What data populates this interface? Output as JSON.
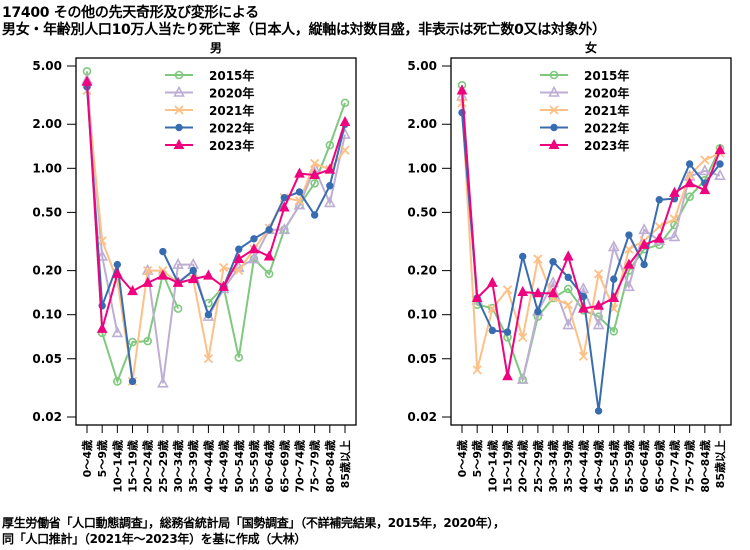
{
  "title_line1": "17400 その他の先天奇形及び変形による",
  "title_line2": "男女・年齢別人口10万人当たり死亡率（日本人，縦軸は対数目盛，非表示は死亡数0又は対象外）",
  "source_line1": "厚生労働省「人口動態調査」，総務省統計局「国勢調査」（不詳補完結果，2015年，2020年），",
  "source_line2": "同「人口推計」（2021年～2023年）を基に作成（大林）",
  "chart_data": [
    {
      "type": "line",
      "title": "男",
      "yscale": "log",
      "ylim": [
        0.02,
        5.0
      ],
      "yticks": [
        5.0,
        2.0,
        1.0,
        0.5,
        0.2,
        0.1,
        0.05,
        0.02
      ],
      "ytick_labels": [
        "5.00",
        "2.00",
        "1.00",
        "0.50",
        "0.20",
        "0.10",
        "0.05",
        "0.02"
      ],
      "categories": [
        "0～4歳",
        "5～9歳",
        "10～14歳",
        "15～19歳",
        "20～24歳",
        "25～29歳",
        "30～34歳",
        "35～39歳",
        "40～44歳",
        "45～49歳",
        "50～54歳",
        "55～59歳",
        "60～64歳",
        "65～69歳",
        "70～74歳",
        "75～79歳",
        "80～84歳",
        "85歳以上"
      ],
      "legend_position": "top-center",
      "series": [
        {
          "name": "2015年",
          "color": "#7fc97f",
          "marker": "circle-open",
          "values": [
            4.6,
            0.075,
            0.035,
            0.065,
            0.066,
            0.19,
            0.11,
            null,
            0.12,
            0.155,
            0.051,
            0.24,
            0.19,
            0.38,
            0.56,
            0.79,
            1.44,
            2.8
          ]
        },
        {
          "name": "2020年",
          "color": "#beaed4",
          "marker": "triangle-open",
          "values": [
            4.0,
            0.25,
            0.075,
            null,
            0.2,
            0.034,
            0.22,
            0.22,
            0.097,
            0.15,
            0.21,
            0.24,
            0.38,
            0.38,
            0.56,
            1.0,
            0.58,
            1.7
          ]
        },
        {
          "name": "2021年",
          "color": "#fdc086",
          "marker": "x",
          "values": [
            3.4,
            0.32,
            0.17,
            0.035,
            0.2,
            0.2,
            0.165,
            0.175,
            0.05,
            0.21,
            0.2,
            0.28,
            0.39,
            0.63,
            0.6,
            1.08,
            0.98,
            1.33
          ]
        },
        {
          "name": "2022年",
          "color": "#386cb0",
          "marker": "circle-filled",
          "values": [
            3.6,
            0.115,
            0.22,
            0.035,
            null,
            0.27,
            0.165,
            0.2,
            0.1,
            0.155,
            0.28,
            0.33,
            0.38,
            0.63,
            0.69,
            0.48,
            0.76,
            2.0
          ]
        },
        {
          "name": "2023年",
          "color": "#f0027f",
          "marker": "triangle-filled",
          "values": [
            3.9,
            0.08,
            0.19,
            0.145,
            0.165,
            0.185,
            0.165,
            0.175,
            0.185,
            0.155,
            0.24,
            0.28,
            0.25,
            0.54,
            0.92,
            0.9,
            0.98,
            2.07
          ]
        }
      ]
    },
    {
      "type": "line",
      "title": "女",
      "yscale": "log",
      "ylim": [
        0.02,
        5.0
      ],
      "yticks": [
        5.0,
        2.0,
        1.0,
        0.5,
        0.2,
        0.1,
        0.05,
        0.02
      ],
      "ytick_labels": [
        "5.00",
        "2.00",
        "1.00",
        "0.50",
        "0.20",
        "0.10",
        "0.05",
        "0.02"
      ],
      "categories": [
        "0～4歳",
        "5～9歳",
        "10～14歳",
        "15～19歳",
        "20～24歳",
        "25～29歳",
        "30～34歳",
        "35～39歳",
        "40～44歳",
        "45～49歳",
        "50～54歳",
        "55～59歳",
        "60～64歳",
        "65～69歳",
        "70～74歳",
        "75～79歳",
        "80～84歳",
        "85歳以上"
      ],
      "legend_position": "top-center",
      "series": [
        {
          "name": "2015年",
          "color": "#7fc97f",
          "marker": "circle-open",
          "values": [
            3.7,
            0.117,
            0.111,
            0.07,
            0.036,
            0.097,
            0.13,
            0.15,
            0.107,
            0.097,
            0.077,
            0.2,
            0.28,
            0.3,
            0.41,
            0.64,
            0.83,
            1.37
          ]
        },
        {
          "name": "2020年",
          "color": "#beaed4",
          "marker": "triangle-open",
          "values": [
            3.1,
            0.125,
            null,
            null,
            0.036,
            0.105,
            0.165,
            0.085,
            0.15,
            0.085,
            0.29,
            0.155,
            0.38,
            0.32,
            0.34,
            0.88,
            0.96,
            0.89
          ]
        },
        {
          "name": "2021年",
          "color": "#fdc086",
          "marker": "x",
          "values": [
            2.8,
            0.042,
            0.11,
            0.148,
            0.07,
            0.24,
            0.13,
            0.117,
            0.052,
            0.19,
            0.11,
            0.28,
            0.32,
            0.4,
            0.45,
            0.9,
            1.14,
            1.27
          ]
        },
        {
          "name": "2022年",
          "color": "#386cb0",
          "marker": "circle-filled",
          "values": [
            2.4,
            0.13,
            0.078,
            0.076,
            0.25,
            0.105,
            0.23,
            0.18,
            0.133,
            0.022,
            0.175,
            0.35,
            0.22,
            0.61,
            0.62,
            1.07,
            0.79,
            1.07
          ]
        },
        {
          "name": "2023年",
          "color": "#f0027f",
          "marker": "triangle-filled",
          "values": [
            3.4,
            0.13,
            0.165,
            0.038,
            0.143,
            0.14,
            0.14,
            0.25,
            0.11,
            0.115,
            0.13,
            0.22,
            0.3,
            0.33,
            0.68,
            0.79,
            0.71,
            1.33
          ]
        }
      ]
    }
  ]
}
